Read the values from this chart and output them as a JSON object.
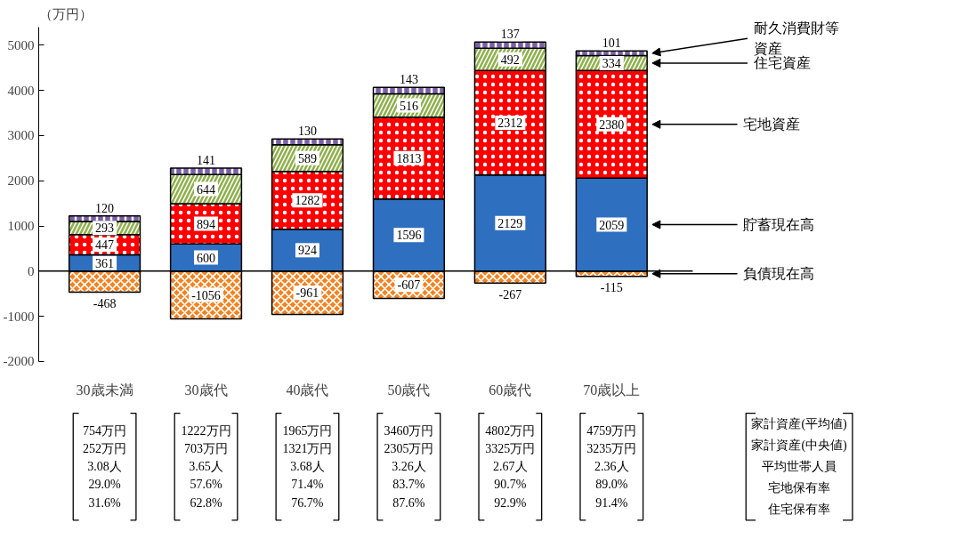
{
  "chart_data": {
    "type": "bar",
    "stacked": true,
    "ylabel": "（万円）",
    "categories": [
      "30歳未満",
      "30歳代",
      "40歳代",
      "50歳代",
      "60歳代",
      "70歳以上"
    ],
    "series": [
      {
        "name": "負債現在高",
        "color": "#f5821f",
        "values": [
          -468,
          -1056,
          -961,
          -607,
          -267,
          -115
        ]
      },
      {
        "name": "貯蓄現在高",
        "color": "#2f6fc0",
        "values": [
          361,
          600,
          924,
          1596,
          2129,
          2059
        ]
      },
      {
        "name": "宅地資産",
        "color": "#ff0000",
        "values": [
          447,
          894,
          1282,
          1813,
          2312,
          2380
        ]
      },
      {
        "name": "住宅資産",
        "color": "#8db04a",
        "values": [
          293,
          644,
          589,
          516,
          492,
          334
        ]
      },
      {
        "name": "耐久消費財等資産",
        "color": "#7a5fa8",
        "values": [
          120,
          141,
          130,
          143,
          137,
          101
        ]
      }
    ],
    "ylim": [
      -2000,
      5400
    ],
    "yticks": [
      -2000,
      -1000,
      0,
      1000,
      2000,
      3000,
      4000,
      5000
    ],
    "ref_lines": [
      {
        "axis": "y",
        "value": 0,
        "label": null,
        "color": "#000000"
      }
    ],
    "data_labels": true,
    "grid": false,
    "annotations": [
      "754万円\n252万円\n3.08人\n29.0%\n31.6%",
      "1222万円\n703万円\n3.65人\n57.6%\n62.8%",
      "1965万円\n1321万円\n3.68人\n71.4%\n76.7%",
      "3460万円\n2305万円\n3.26人\n83.7%\n87.6%",
      "4802万円\n3325万円\n2.67人\n90.7%\n92.9%",
      "4759万円\n3235万円\n2.36人\n89.0%\n91.4%",
      "家計資産(平均値)",
      "家計資産(中央値)",
      "平均世帯人員",
      "宅地保有率",
      "住宅保有率"
    ]
  }
}
